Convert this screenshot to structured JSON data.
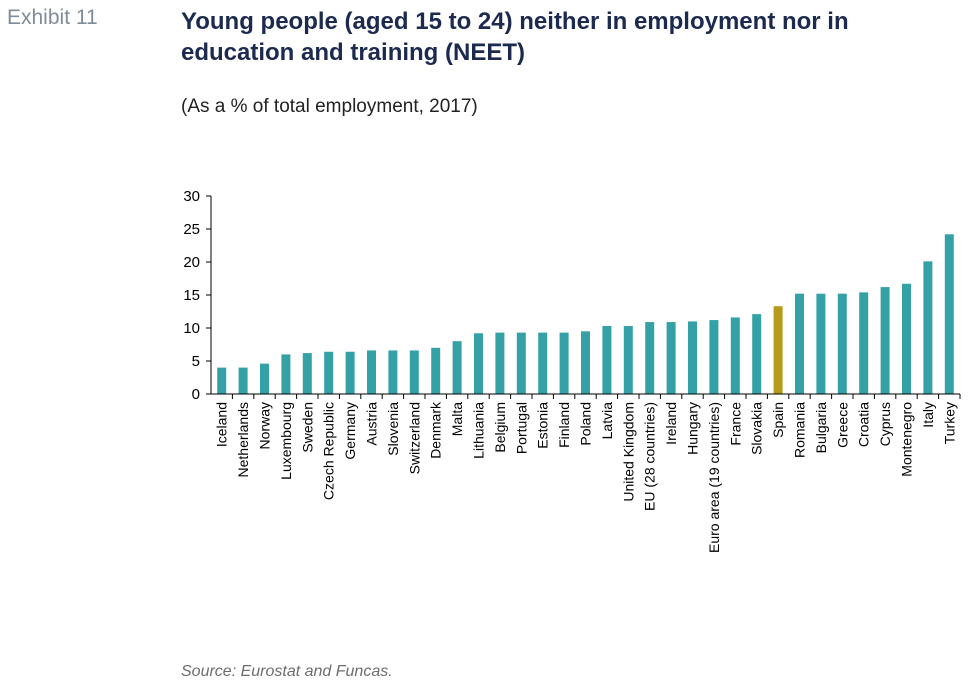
{
  "header": {
    "exhibit": "Exhibit 11",
    "title": "Young people (aged 15 to 24) neither in employment nor in education and training (NEET)",
    "subtitle": "(As a % of total employment, 2017)"
  },
  "footer": {
    "source": "Source: Eurostat and Funcas."
  },
  "colors": {
    "bar": "#33a1a6",
    "highlight": "#b59a1c",
    "axis": "#000000"
  },
  "chart_data": {
    "type": "bar",
    "categories": [
      "Iceland",
      "Netherlands",
      "Norway",
      "Luxembourg",
      "Sweden",
      "Czech Republic",
      "Germany",
      "Austria",
      "Slovenia",
      "Switzerland",
      "Denmark",
      "Malta",
      "Lithuania",
      "Belgium",
      "Portugal",
      "Estonia",
      "Finland",
      "Poland",
      "Latvia",
      "United Kingdom",
      "EU (28 countries)",
      "Ireland",
      "Hungary",
      "Euro area (19 countries)",
      "France",
      "Slovakia",
      "Spain",
      "Romania",
      "Bulgaria",
      "Greece",
      "Croatia",
      "Cyprus",
      "Montenegro",
      "Italy",
      "Turkey"
    ],
    "values": [
      4.0,
      4.0,
      4.6,
      6.0,
      6.2,
      6.4,
      6.4,
      6.6,
      6.6,
      6.6,
      7.0,
      8.0,
      9.2,
      9.3,
      9.3,
      9.3,
      9.3,
      9.5,
      10.3,
      10.3,
      10.9,
      10.9,
      11.0,
      11.2,
      11.6,
      12.1,
      13.3,
      15.2,
      15.2,
      15.2,
      15.4,
      16.2,
      16.7,
      20.1,
      24.2
    ],
    "highlight": "Spain",
    "yticks": [
      0,
      5,
      10,
      15,
      20,
      25,
      30
    ],
    "ylim": [
      0,
      30
    ],
    "title": "",
    "xlabel": "",
    "ylabel": "",
    "grid": false
  }
}
